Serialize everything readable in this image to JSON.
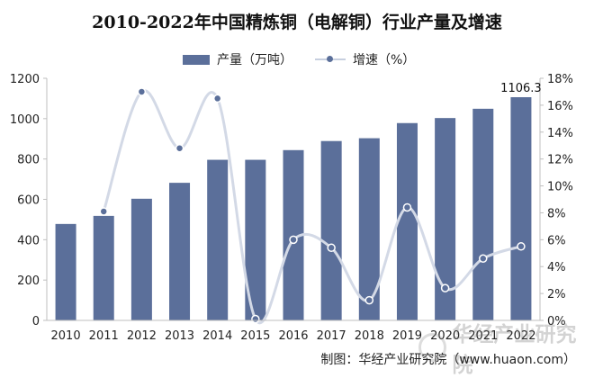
{
  "title": "2010-2022年中国精炼铜（电解铜）行业产量及增速",
  "legend": {
    "bar_label": "产量（万吨）",
    "line_label": "增速（%）"
  },
  "source": "制图：华经产业研究院（www.huaon.com）",
  "watermark": "华经产业研究院",
  "colors": {
    "bar": "#5b6f9a",
    "line": "#d3d9e6",
    "marker": "#5b6f9a",
    "axis": "#bfbfbf"
  },
  "chart_data": {
    "type": "bar",
    "categories": [
      "2010",
      "2011",
      "2012",
      "2013",
      "2014",
      "2015",
      "2016",
      "2017",
      "2018",
      "2019",
      "2020",
      "2021",
      "2022"
    ],
    "series": [
      {
        "name": "产量（万吨）",
        "type": "bar",
        "axis": "left",
        "values": [
          478,
          518,
          603,
          682,
          796,
          796,
          844,
          889,
          903,
          978,
          1003,
          1049,
          1106.3
        ]
      },
      {
        "name": "增速（%）",
        "type": "line",
        "axis": "right",
        "smooth": true,
        "values": [
          null,
          8.1,
          17.0,
          12.8,
          16.5,
          0.1,
          6.0,
          5.4,
          1.5,
          8.4,
          2.4,
          4.6,
          5.5
        ]
      }
    ],
    "data_labels": [
      {
        "category": "2022",
        "text": "1106.3"
      }
    ],
    "y_left": {
      "min": 0,
      "max": 1200,
      "ticks": [
        "0",
        "200",
        "400",
        "600",
        "800",
        "1000",
        "1200"
      ]
    },
    "y_right": {
      "min": 0,
      "max": 18,
      "ticks": [
        "0%",
        "2%",
        "4%",
        "6%",
        "8%",
        "10%",
        "12%",
        "14%",
        "16%",
        "18%"
      ]
    },
    "grid": false,
    "legend_position": "top"
  }
}
